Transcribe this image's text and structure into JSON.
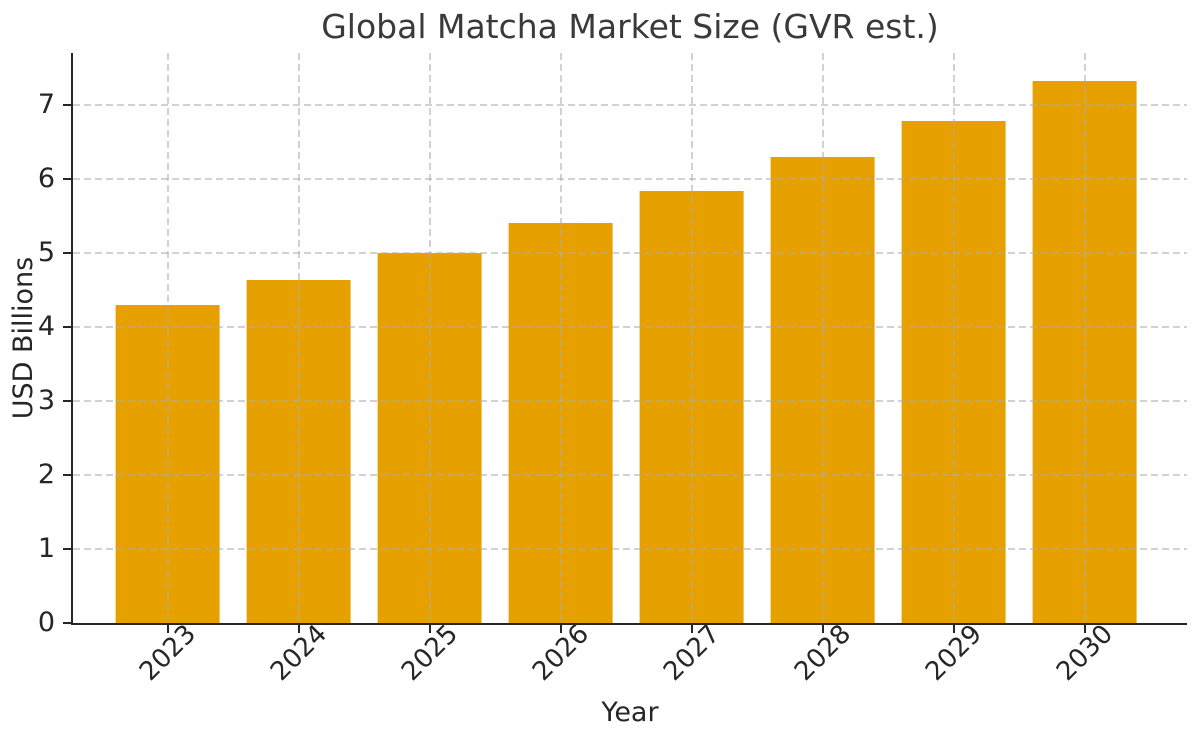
{
  "chart_data": {
    "type": "bar",
    "title": "Global Matcha Market Size (GVR est.)",
    "xlabel": "Year",
    "ylabel": "USD Billions",
    "categories": [
      "2023",
      "2024",
      "2025",
      "2026",
      "2027",
      "2028",
      "2029",
      "2030"
    ],
    "values": [
      4.3,
      4.64,
      5.0,
      5.4,
      5.83,
      6.29,
      6.78,
      7.32
    ],
    "yticks": [
      0,
      1,
      2,
      3,
      4,
      5,
      6,
      7
    ],
    "ylim": [
      0,
      7.7
    ],
    "bar_color": "#E6A000",
    "grid": "dashed, both axes, drawn over bars",
    "legend": "none",
    "xtick_rotation_deg": 45
  }
}
